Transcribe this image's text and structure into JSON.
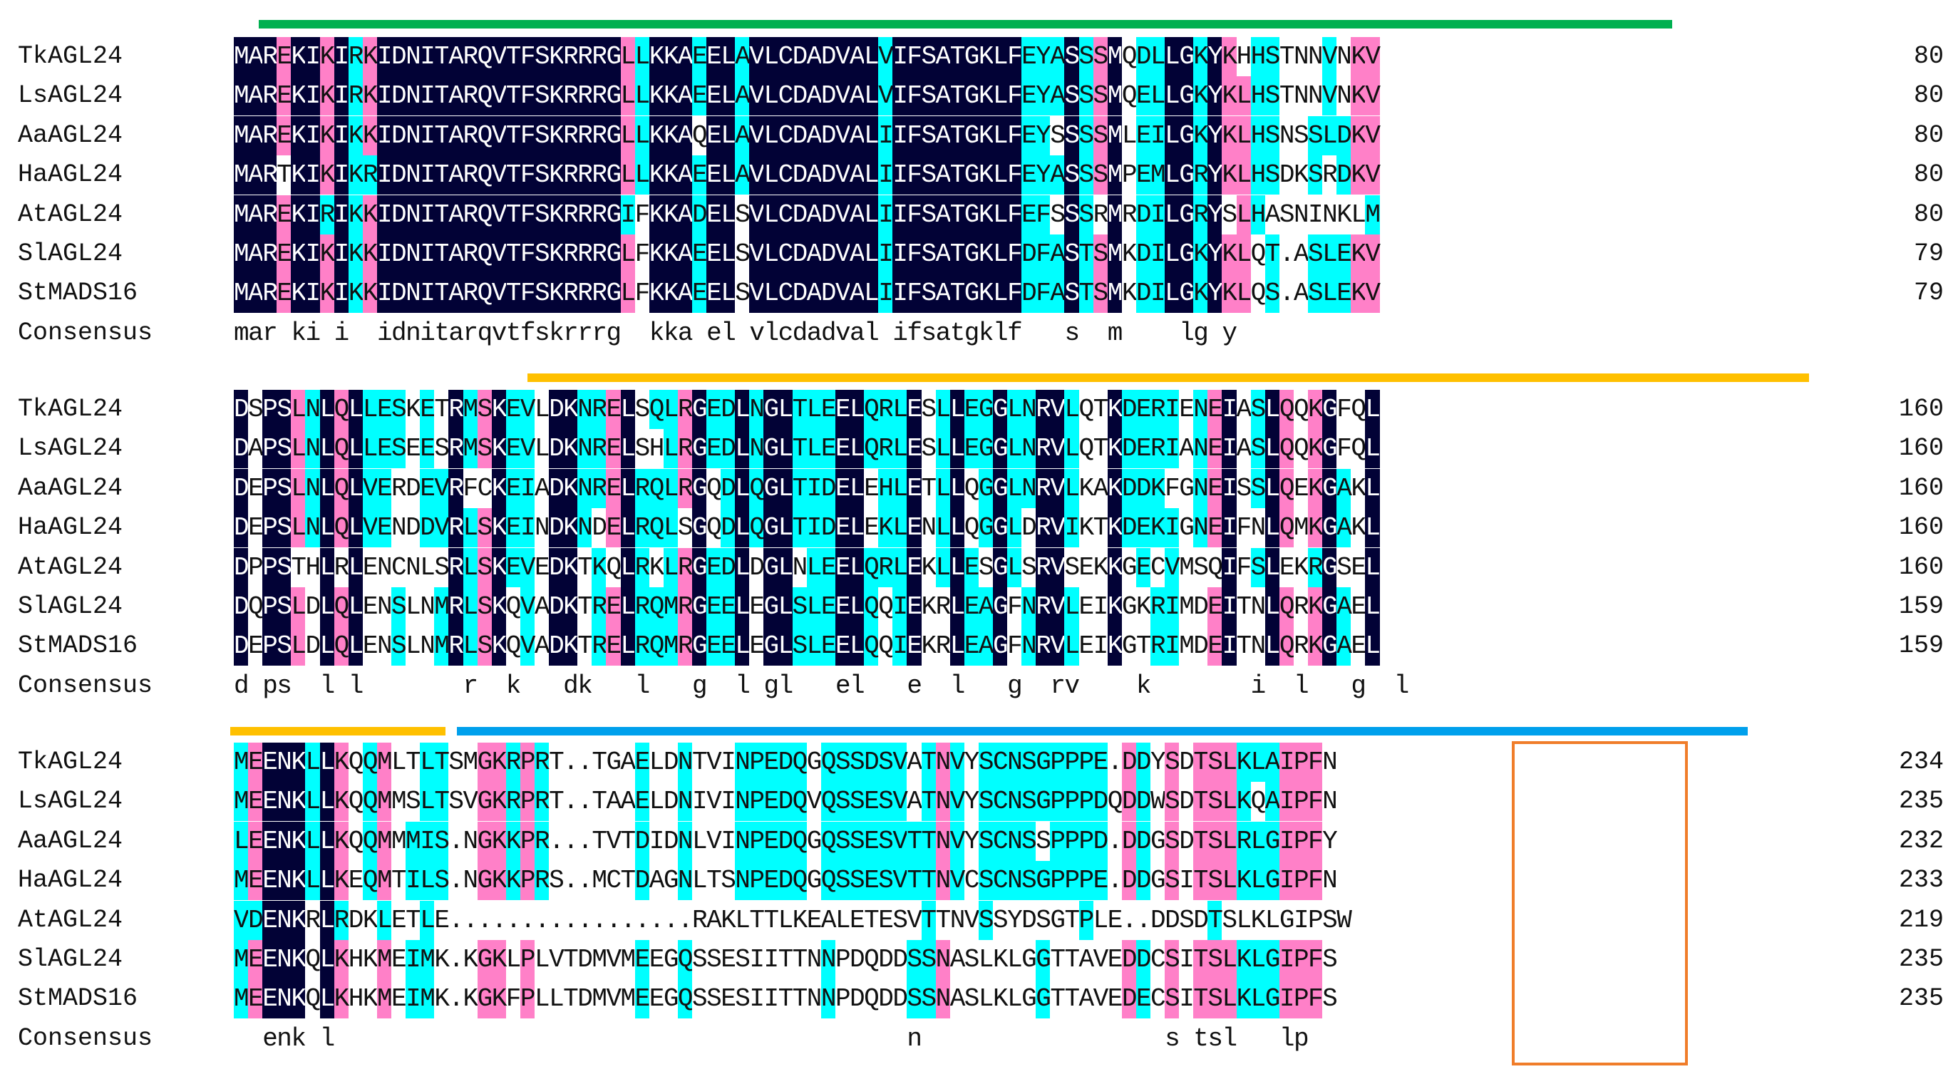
{
  "colors": {
    "identical": "#020236",
    "similar": "#ff80c8",
    "partial": "#00ffff",
    "identical_text": "#ffffff",
    "other_text": "#111111",
    "bar_green": "#00b050",
    "bar_orange": "#ffc000",
    "bar_blue": "#00a0ec",
    "motif_box": "#f07d2a"
  },
  "legend": {
    "consensus_label": "Consensus"
  },
  "blocks": [
    {
      "rows": [
        {
          "name": "TkAGL24",
          "seq": "MAREKIKIRKIDNITARQVTFSKRRRGLLKKAEELAVLCDADVALVIFSATGKLFEYASSSMQDLLGKYKHHSTNNVNKV",
          "num": "80"
        },
        {
          "name": "LsAGL24",
          "seq": "MAREKIKIRKIDNITARQVTFSKRRRGLLKKAEELAVLCDADVALVIFSATGKLFEYASSSMQELLGKYKLHSTNNVNKV",
          "num": "80"
        },
        {
          "name": "AaAGL24",
          "seq": "MAREKIKIKKIDNITARQVTFSKRRRGLLKKAQELAVLCDADVALIIFSATGKLFEYSSSSMLEILGKYKLHSNSSLDKV",
          "num": "80"
        },
        {
          "name": "HaAGL24",
          "seq": "MARTKIKIKRIDNITARQVTFSKRRRGLLKKAEELAVLCDADVALIIFSATGKLFEYASSSMPEMLGRYKLHSDKSRDKV",
          "num": "80"
        },
        {
          "name": "AtAGL24",
          "seq": "MAREKIRIKKIDNITARQVTFSKRRRGIFKKADELSVLCDADVALIIFSATGKLFEFSSSRMRDILGRYSLHASNINKLM",
          "num": "80"
        },
        {
          "name": "SlAGL24",
          "seq": "MAREKIKIKKIDNITARQVTFSKRRRGLFKKAEELSVLCDADVALIIFSATGKLFDFASTSMKDILGKYKLQT.ASLEKV",
          "num": "79"
        },
        {
          "name": "StMADS16",
          "seq": "MAREKIKIKKIDNITARQVTFSKRRRGLFKKAEELSVLCDADVALIIFSATGKLFDFASTSMKDILGKYKLQS.ASLEKV",
          "num": "79"
        }
      ],
      "consensus": "mar ki i  idnitarqvtfskrrrg  kka el vlcdadval ifsatgklf   s  m    lg y"
    },
    {
      "rows": [
        {
          "name": "TkAGL24",
          "seq": "DSPSLNLQLLESKETRMSKEVLDKNRELSQLRGEDLNGLTLEELQRLESLLEGGLNRVLQTKDERIENEIASLQQKGFQL",
          "num": "160"
        },
        {
          "name": "LsAGL24",
          "seq": "DAPSLNLQLLESEESRMSKEVLDKNRELSHLRGEDLNGLTLEELQRLESLLEGGLNRVLQTKDERIANEIASLQQKGFQL",
          "num": "160"
        },
        {
          "name": "AaAGL24",
          "seq": "DEPSLNLQLVERDEVRFCKEIADKNRELRQLRGQDLQGLTIDELEHLETLLQGGLNRVLKAKDDKFGNEISSLQEKGAKL",
          "num": "160"
        },
        {
          "name": "HaAGL24",
          "seq": "DEPSLNLQLVENDDVRLSKEINDKNDELRQLSGQDLQGLTIDELEKLENLLQGGLDRVIKTKDEKIGNEIFNLQMKGAKL",
          "num": "160"
        },
        {
          "name": "AtAGL24",
          "seq": "DPPSTHLRLENCNLSRLSKEVEDKTKQLRKLRGEDLDGLNLEELQRLEKLLESGLSRVSEKKGECVMSQIFSLEKRGSEL",
          "num": "160"
        },
        {
          "name": "SlAGL24",
          "seq": "DQPSLDLQLENSLNMRLSKQVADKTRELRQMRGEELEGLSLEELQQIEKRLEAGFNRVLEIKGKRIMDEITNLQRKGAEL",
          "num": "159"
        },
        {
          "name": "StMADS16",
          "seq": "DEPSLDLQLENSLNMRLSKQVADKTRELRQMRGEELEGLSLEELQQIEKRLEAGFNRVLEIKGTRIMDEITNLQRKGAEL",
          "num": "159"
        }
      ],
      "consensus": "d ps  l l       r  k   dk   l   g  l gl   el   e  l   g  rv    k       i  l   g  l"
    },
    {
      "rows": [
        {
          "name": "TkAGL24",
          "seq": "MEENKLLKQQMLTLTSMGKRPRT..TGAELDNTVINPEDQGQSSDSVATNVYSCNSGPPPE.DDYSDTSLKLAIPFN",
          "num": "234"
        },
        {
          "name": "LsAGL24",
          "seq": "MEENKLLKQQMMSLTSVGKRPRT..TAAELDNIVINPEDQVQSSESVATNVYSCNSGPPPDQDDWSDTSLKQAIPFN",
          "num": "235"
        },
        {
          "name": "AaAGL24",
          "seq": "LEENKLLKQQMMMIS.NGKKPR...TVTDIDNLVINPEDQGQSSESVTTNVYSCNSSPPPD.DDGSDTSLRLGIPFY",
          "num": "232"
        },
        {
          "name": "HaAGL24",
          "seq": "MEENKLLKEQMTILS.NGKKPRS..MCTDAGNLTSNPEDQGQSSESVTTNVCSCNSGPPPE.DDGSITSLKLGIPFN",
          "num": "233"
        },
        {
          "name": "AtAGL24",
          "seq": "VDENKRLRDKLETLE.................RAKLTTLKEALETESVTTNVSSYDSGTPLE..DDSDTSLKLGIPSW",
          "num": "219"
        },
        {
          "name": "SlAGL24",
          "seq": "MEENKQLKHKMEIMK.KGKLPLVTDMVMEEGQSSESIITTNNPDQDDSSNASLKLGGTTAVEDDCSITSLKLGIPFS",
          "num": "235"
        },
        {
          "name": "StMADS16",
          "seq": "MEENKQLKHKMEIMK.KGKFPLLTDMVMEEGQSSESIITTNNPDQDDSSNASLKLGGTTAVEDECSITSLKLGIPFS",
          "num": "235"
        }
      ],
      "consensus": "  enk l                                        n                 s tsl   lp"
    }
  ]
}
